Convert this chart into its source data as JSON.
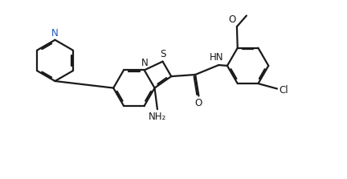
{
  "bg_color": "#ffffff",
  "line_color": "#1a1a1a",
  "bond_lw": 1.6,
  "figsize": [
    4.32,
    2.23
  ],
  "dpi": 100,
  "xlim": [
    0,
    10
  ],
  "ylim": [
    0,
    5.15
  ],
  "N_color": "#1a1a1a",
  "py_N_color": "#2255bb"
}
